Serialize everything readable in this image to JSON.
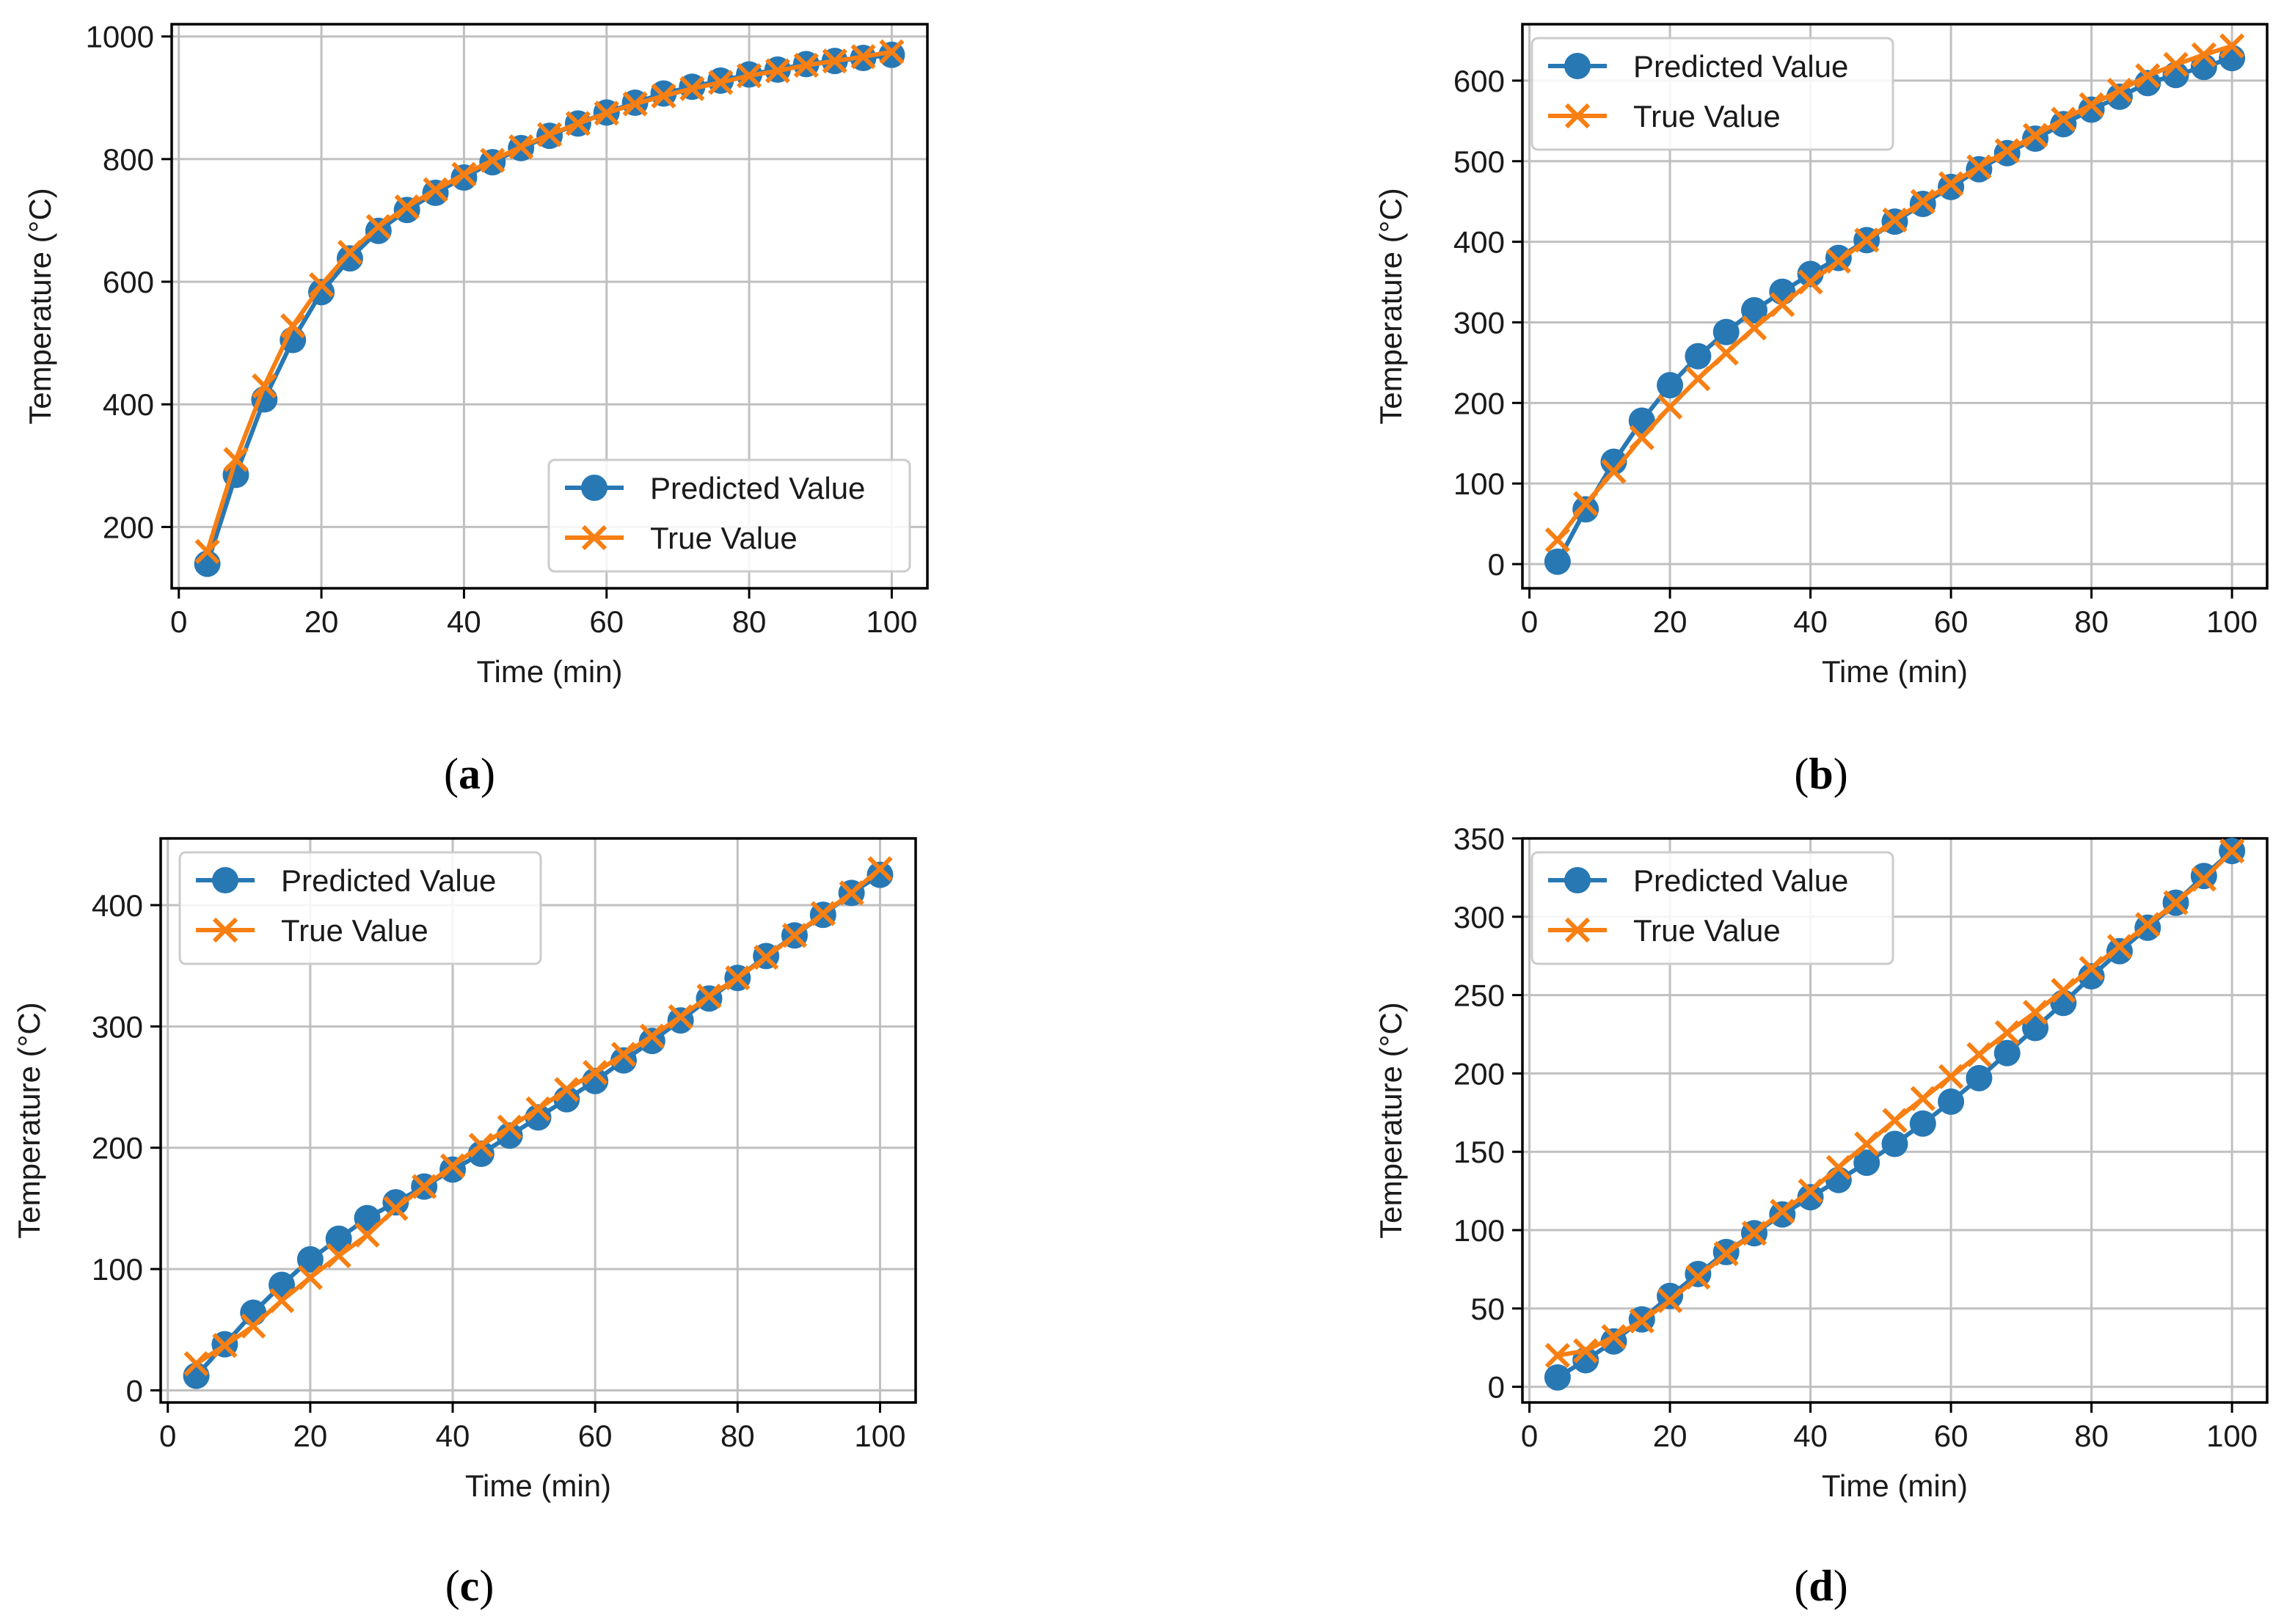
{
  "colors": {
    "predicted": "#2878b4",
    "true": "#f77f13",
    "grid": "#c0c0c0",
    "axis": "#000000"
  },
  "chart_data": [
    {
      "panel": "a",
      "panel_label": "a",
      "type": "line",
      "xlabel": "Time (min)",
      "ylabel": "Temperature (°C)",
      "xlim": [
        -1,
        105
      ],
      "ylim": [
        100,
        1020
      ],
      "xticks": [
        0,
        20,
        40,
        60,
        80,
        100
      ],
      "xtick_labels": [
        "0",
        "20",
        "40",
        "60",
        "80",
        "100"
      ],
      "yticks": [
        200,
        400,
        600,
        800,
        1000
      ],
      "ytick_labels": [
        "200",
        "400",
        "600",
        "800",
        "1000"
      ],
      "grid": true,
      "legend_position": "lower-right",
      "x": [
        4,
        8,
        12,
        16,
        20,
        24,
        28,
        32,
        36,
        40,
        44,
        48,
        52,
        56,
        60,
        64,
        68,
        72,
        76,
        80,
        84,
        88,
        92,
        96,
        100
      ],
      "series": [
        {
          "name": "Predicted Value",
          "marker": "circle",
          "values": [
            140,
            285,
            408,
            505,
            583,
            638,
            683,
            717,
            745,
            770,
            795,
            818,
            838,
            858,
            876,
            892,
            907,
            918,
            928,
            938,
            946,
            955,
            960,
            965,
            970
          ]
        },
        {
          "name": "True Value",
          "marker": "x",
          "values": [
            160,
            310,
            430,
            528,
            595,
            648,
            690,
            722,
            750,
            775,
            798,
            820,
            840,
            858,
            875,
            890,
            903,
            915,
            925,
            936,
            944,
            953,
            960,
            967,
            975
          ]
        }
      ]
    },
    {
      "panel": "b",
      "panel_label": "b",
      "type": "line",
      "xlabel": "Time (min)",
      "ylabel": "Temperature (°C)",
      "xlim": [
        -1,
        105
      ],
      "ylim": [
        -30,
        670
      ],
      "xticks": [
        0,
        20,
        40,
        60,
        80,
        100
      ],
      "xtick_labels": [
        "0",
        "20",
        "40",
        "60",
        "80",
        "100"
      ],
      "yticks": [
        0,
        100,
        200,
        300,
        400,
        500,
        600
      ],
      "ytick_labels": [
        "0",
        "100",
        "200",
        "300",
        "400",
        "500",
        "600"
      ],
      "grid": true,
      "legend_position": "upper-left",
      "x": [
        4,
        8,
        12,
        16,
        20,
        24,
        28,
        32,
        36,
        40,
        44,
        48,
        52,
        56,
        60,
        64,
        68,
        72,
        76,
        80,
        84,
        88,
        92,
        96,
        100
      ],
      "series": [
        {
          "name": "Predicted Value",
          "marker": "circle",
          "values": [
            3,
            68,
            127,
            178,
            222,
            258,
            288,
            315,
            338,
            360,
            380,
            402,
            425,
            447,
            468,
            490,
            510,
            528,
            546,
            564,
            580,
            597,
            607,
            617,
            628
          ]
        },
        {
          "name": "True Value",
          "marker": "x",
          "values": [
            30,
            75,
            115,
            157,
            195,
            230,
            262,
            293,
            322,
            350,
            376,
            402,
            427,
            450,
            472,
            493,
            513,
            532,
            552,
            570,
            588,
            606,
            620,
            632,
            643
          ]
        }
      ]
    },
    {
      "panel": "c",
      "panel_label": "c",
      "type": "line",
      "xlabel": "Time (min)",
      "ylabel": "Temperature (°C)",
      "xlim": [
        -1,
        105
      ],
      "ylim": [
        -10,
        455
      ],
      "xticks": [
        0,
        20,
        40,
        60,
        80,
        100
      ],
      "xtick_labels": [
        "0",
        "20",
        "40",
        "60",
        "80",
        "100"
      ],
      "yticks": [
        0,
        100,
        200,
        300,
        400
      ],
      "ytick_labels": [
        "0",
        "100",
        "200",
        "300",
        "400"
      ],
      "grid": true,
      "legend_position": "upper-left",
      "x": [
        4,
        8,
        12,
        16,
        20,
        24,
        28,
        32,
        36,
        40,
        44,
        48,
        52,
        56,
        60,
        64,
        68,
        72,
        76,
        80,
        84,
        88,
        92,
        96,
        100
      ],
      "series": [
        {
          "name": "Predicted Value",
          "marker": "circle",
          "values": [
            12,
            38,
            64,
            87,
            108,
            125,
            142,
            155,
            168,
            182,
            195,
            210,
            225,
            240,
            255,
            272,
            288,
            305,
            323,
            340,
            358,
            375,
            392,
            410,
            425
          ]
        },
        {
          "name": "True Value",
          "marker": "x",
          "values": [
            22,
            37,
            53,
            74,
            93,
            111,
            128,
            150,
            168,
            185,
            202,
            217,
            232,
            248,
            262,
            277,
            292,
            308,
            325,
            340,
            357,
            375,
            393,
            410,
            430
          ]
        }
      ]
    },
    {
      "panel": "d",
      "panel_label": "d",
      "type": "line",
      "xlabel": "Time (min)",
      "ylabel": "Temperature (°C)",
      "xlim": [
        -1,
        105
      ],
      "ylim": [
        -10,
        350
      ],
      "xticks": [
        0,
        20,
        40,
        60,
        80,
        100
      ],
      "xtick_labels": [
        "0",
        "20",
        "40",
        "60",
        "80",
        "100"
      ],
      "yticks": [
        0,
        50,
        100,
        150,
        200,
        250,
        300,
        350
      ],
      "ytick_labels": [
        "0",
        "50",
        "100",
        "150",
        "200",
        "250",
        "300",
        "350"
      ],
      "grid": true,
      "legend_position": "upper-left",
      "x": [
        4,
        8,
        12,
        16,
        20,
        24,
        28,
        32,
        36,
        40,
        44,
        48,
        52,
        56,
        60,
        64,
        68,
        72,
        76,
        80,
        84,
        88,
        92,
        96,
        100
      ],
      "series": [
        {
          "name": "Predicted Value",
          "marker": "circle",
          "values": [
            6,
            17,
            29,
            43,
            58,
            72,
            86,
            98,
            110,
            121,
            132,
            143,
            155,
            168,
            182,
            197,
            213,
            229,
            245,
            262,
            278,
            293,
            309,
            326,
            342
          ]
        },
        {
          "name": "True Value",
          "marker": "x",
          "values": [
            20,
            23,
            32,
            42,
            55,
            70,
            85,
            98,
            112,
            125,
            140,
            155,
            170,
            184,
            198,
            212,
            226,
            239,
            253,
            267,
            281,
            295,
            309,
            324,
            342
          ]
        }
      ]
    }
  ]
}
